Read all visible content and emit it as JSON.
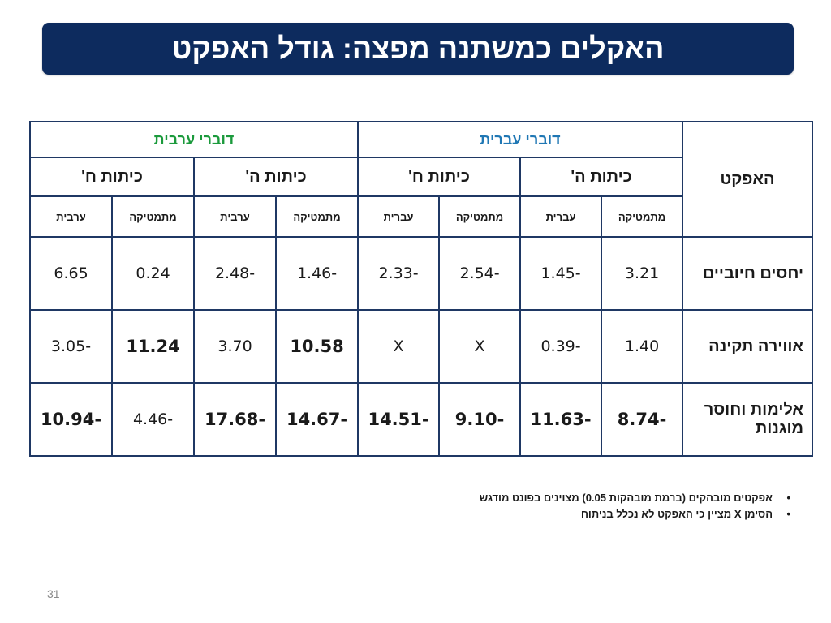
{
  "title": "האקלים כמשתנה מפצה: גודל האפקט",
  "table": {
    "effect_header": "האפקט",
    "languages": {
      "hebrew": "דוברי עברית",
      "arabic": "דוברי ערבית"
    },
    "grades": {
      "grade5": "כיתות ה'",
      "grade8": "כיתות ח'"
    },
    "subjects": {
      "hebrew_math": "מתמטיקה",
      "hebrew_lang": "עברית",
      "arabic_math": "מתמטיקה",
      "arabic_lang": "ערבית"
    },
    "rows": [
      {
        "label": "יחסים חיוביים",
        "cells": [
          {
            "value": "3.21",
            "bold": false
          },
          {
            "value": "-1.45",
            "bold": false
          },
          {
            "value": "-2.54",
            "bold": false
          },
          {
            "value": "-2.33",
            "bold": false
          },
          {
            "value": "-1.46",
            "bold": false
          },
          {
            "value": "-2.48",
            "bold": false
          },
          {
            "value": "0.24",
            "bold": false
          },
          {
            "value": "6.65",
            "bold": false
          }
        ]
      },
      {
        "label": "אווירה תקינה",
        "cells": [
          {
            "value": "1.40",
            "bold": false
          },
          {
            "value": "-0.39",
            "bold": false
          },
          {
            "value": "X",
            "bold": false
          },
          {
            "value": "X",
            "bold": false
          },
          {
            "value": "10.58",
            "bold": true
          },
          {
            "value": "3.70",
            "bold": false
          },
          {
            "value": "11.24",
            "bold": true
          },
          {
            "value": "-3.05",
            "bold": false
          }
        ]
      },
      {
        "label": "אלימות וחוסר מוגנות",
        "cells": [
          {
            "value": "-8.74",
            "bold": true
          },
          {
            "value": "-11.63",
            "bold": true
          },
          {
            "value": "-9.10",
            "bold": true
          },
          {
            "value": "-14.51",
            "bold": true
          },
          {
            "value": "-14.67",
            "bold": true
          },
          {
            "value": "-17.68",
            "bold": true
          },
          {
            "value": "-4.46",
            "bold": false
          },
          {
            "value": "-10.94",
            "bold": true
          }
        ]
      }
    ]
  },
  "notes": [
    "אפקטים מובהקים (ברמת מובהקות 0.05) מצוינים בפונט מודגש",
    "הסימן X מציין כי האפקט לא נכלל בניתוח"
  ],
  "bullet_char": "•",
  "page_number": "31"
}
